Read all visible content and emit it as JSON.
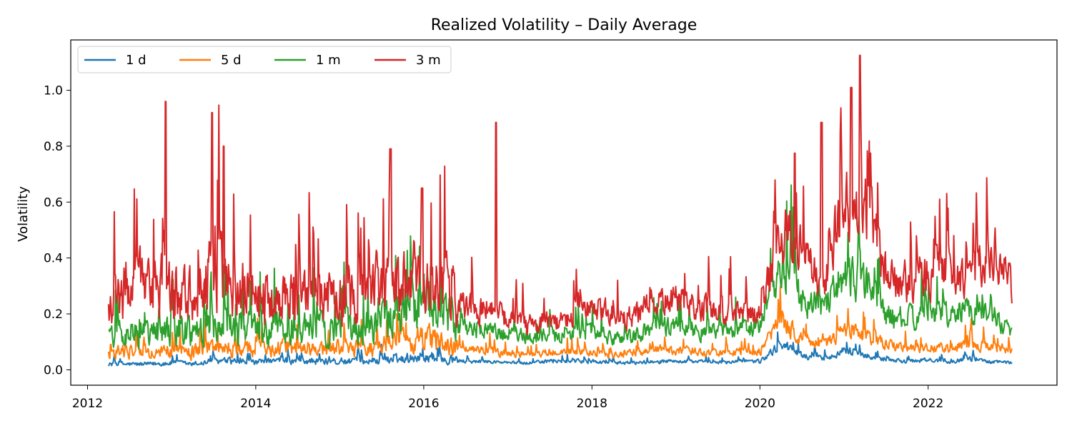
{
  "chart_data": {
    "type": "line",
    "title": "Realized Volatility – Daily Average",
    "xlabel": "",
    "ylabel": "Volatility",
    "xlim": [
      "2011-10-20",
      "2023-07-15"
    ],
    "ylim": [
      -0.055,
      1.18
    ],
    "x_ticks": [
      "2012",
      "2014",
      "2016",
      "2018",
      "2020",
      "2022"
    ],
    "y_ticks": [
      "0.0",
      "0.2",
      "0.4",
      "0.6",
      "0.8",
      "1.0"
    ],
    "grid": false,
    "legend_position": "top-left",
    "x": [
      "2012-04-01",
      "2012-07-01",
      "2012-10-01",
      "2013-01-01",
      "2013-04-01",
      "2013-07-01",
      "2013-10-01",
      "2014-01-01",
      "2014-04-01",
      "2014-07-01",
      "2014-10-01",
      "2015-01-01",
      "2015-04-01",
      "2015-07-01",
      "2015-10-01",
      "2016-01-01",
      "2016-04-01",
      "2016-07-01",
      "2016-10-01",
      "2017-01-01",
      "2017-04-01",
      "2017-07-01",
      "2017-10-01",
      "2018-01-01",
      "2018-04-01",
      "2018-07-01",
      "2018-10-01",
      "2019-01-01",
      "2019-04-01",
      "2019-07-01",
      "2019-10-01",
      "2020-01-01",
      "2020-04-01",
      "2020-07-01",
      "2020-10-01",
      "2021-01-01",
      "2021-04-01",
      "2021-07-01",
      "2021-10-01",
      "2022-01-01",
      "2022-04-01",
      "2022-07-01",
      "2022-10-01",
      "2022-12-31"
    ],
    "series": [
      {
        "name": "1 d",
        "color": "#1f77b4",
        "values": [
          0.02,
          0.02,
          0.02,
          0.025,
          0.02,
          0.03,
          0.03,
          0.025,
          0.03,
          0.03,
          0.03,
          0.03,
          0.03,
          0.035,
          0.04,
          0.05,
          0.04,
          0.03,
          0.03,
          0.025,
          0.025,
          0.03,
          0.03,
          0.03,
          0.025,
          0.025,
          0.03,
          0.03,
          0.03,
          0.025,
          0.03,
          0.03,
          0.09,
          0.05,
          0.04,
          0.07,
          0.05,
          0.04,
          0.03,
          0.035,
          0.03,
          0.04,
          0.03,
          0.025
        ]
      },
      {
        "name": "5 d",
        "color": "#ff7f0e",
        "values": [
          0.06,
          0.07,
          0.06,
          0.07,
          0.065,
          0.08,
          0.08,
          0.07,
          0.08,
          0.08,
          0.07,
          0.08,
          0.075,
          0.09,
          0.1,
          0.12,
          0.09,
          0.07,
          0.07,
          0.06,
          0.055,
          0.06,
          0.065,
          0.06,
          0.05,
          0.06,
          0.07,
          0.07,
          0.065,
          0.06,
          0.065,
          0.065,
          0.18,
          0.11,
          0.09,
          0.14,
          0.12,
          0.09,
          0.08,
          0.08,
          0.08,
          0.09,
          0.08,
          0.07
        ]
      },
      {
        "name": "1 m",
        "color": "#2ca02c",
        "values": [
          0.12,
          0.14,
          0.13,
          0.15,
          0.14,
          0.15,
          0.15,
          0.14,
          0.15,
          0.15,
          0.14,
          0.15,
          0.15,
          0.18,
          0.2,
          0.25,
          0.2,
          0.15,
          0.14,
          0.13,
          0.12,
          0.12,
          0.13,
          0.13,
          0.11,
          0.12,
          0.15,
          0.16,
          0.14,
          0.13,
          0.14,
          0.15,
          0.38,
          0.25,
          0.22,
          0.35,
          0.3,
          0.2,
          0.18,
          0.2,
          0.2,
          0.22,
          0.2,
          0.14
        ]
      },
      {
        "name": "3 m",
        "color": "#d62728",
        "values": [
          0.2,
          0.3,
          0.28,
          0.3,
          0.25,
          0.35,
          0.3,
          0.26,
          0.26,
          0.28,
          0.25,
          0.26,
          0.25,
          0.3,
          0.3,
          0.35,
          0.28,
          0.22,
          0.22,
          0.18,
          0.16,
          0.17,
          0.18,
          0.22,
          0.2,
          0.19,
          0.24,
          0.25,
          0.23,
          0.2,
          0.2,
          0.2,
          0.5,
          0.42,
          0.3,
          0.6,
          0.6,
          0.35,
          0.28,
          0.33,
          0.35,
          0.32,
          0.45,
          0.29
        ]
      }
    ],
    "annotations": [
      {
        "date": "2012-12-05",
        "y": 0.96,
        "series": "3 m"
      },
      {
        "date": "2013-06-25",
        "y": 0.92,
        "series": "3 m"
      },
      {
        "date": "2013-08-15",
        "y": 0.8,
        "series": "3 m"
      },
      {
        "date": "2015-08-10",
        "y": 0.79,
        "series": "3 m"
      },
      {
        "date": "2015-12-25",
        "y": 0.65,
        "series": "3 m"
      },
      {
        "date": "2016-11-10",
        "y": 0.885,
        "series": "3 m"
      },
      {
        "date": "2020-06-01",
        "y": 0.775,
        "series": "3 m"
      },
      {
        "date": "2020-09-25",
        "y": 0.885,
        "series": "3 m"
      },
      {
        "date": "2021-02-01",
        "y": 1.01,
        "series": "3 m"
      },
      {
        "date": "2021-03-10",
        "y": 1.125,
        "series": "3 m"
      }
    ]
  }
}
